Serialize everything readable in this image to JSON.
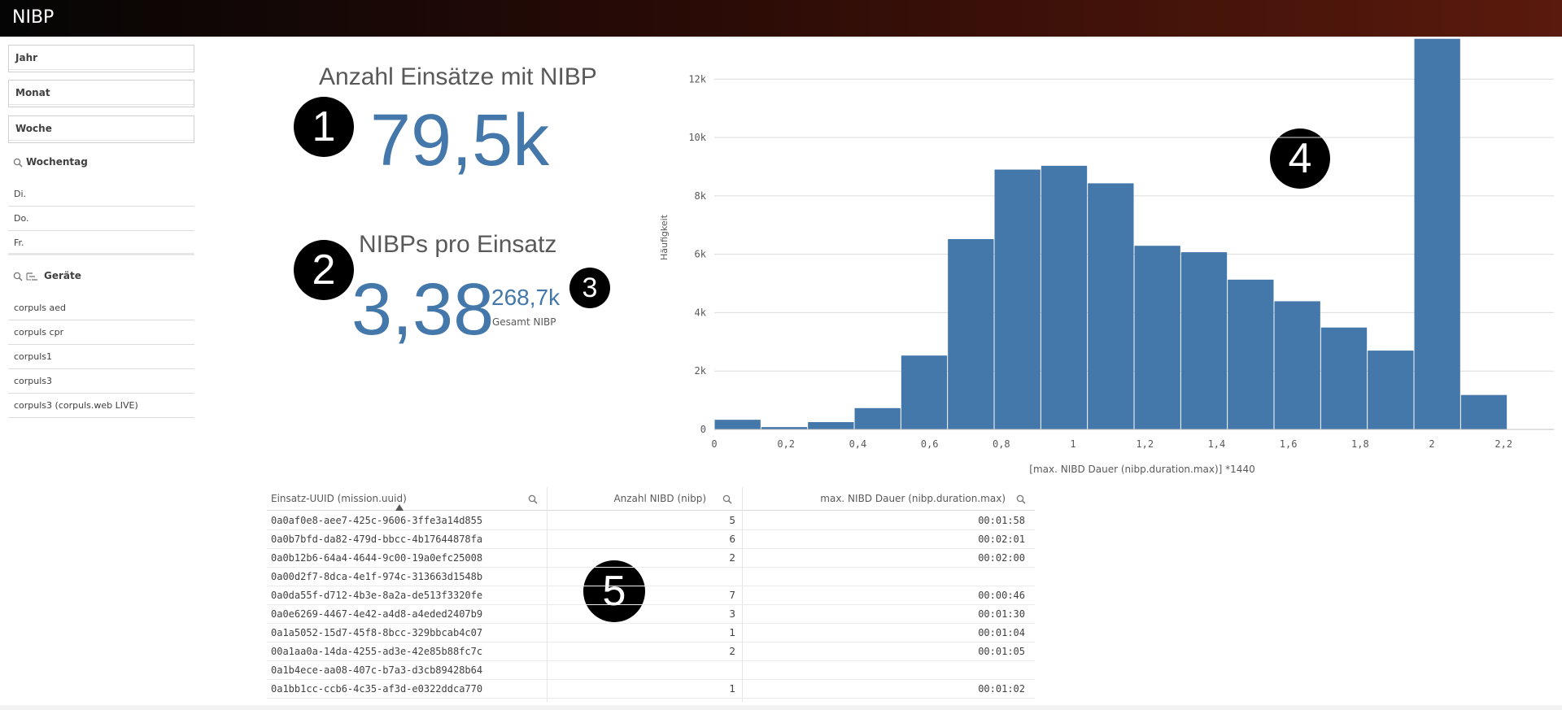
{
  "app": {
    "title": "NIBP"
  },
  "filters": {
    "jahr": "Jahr",
    "monat": "Monat",
    "woche": "Woche",
    "wochentag": {
      "title": "Wochentag",
      "items": [
        "Di.",
        "Do.",
        "Fr."
      ]
    },
    "geraete": {
      "title": "Geräte",
      "items": [
        "corpuls aed",
        "corpuls cpr",
        "corpuls1",
        "corpuls3",
        "corpuls3 (corpuls.web LIVE)"
      ]
    }
  },
  "kpi1": {
    "title": "Anzahl Einsätze mit NIBP",
    "value": "79,5k"
  },
  "kpi2": {
    "title": "NIBPs pro Einsatz",
    "value": "3,38",
    "secondary_value": "268,7k",
    "secondary_label": "Gesamt NIBP"
  },
  "markers": [
    "1",
    "2",
    "3",
    "4",
    "5"
  ],
  "chart_data": {
    "type": "bar",
    "xlabel": "[max. NIBD Dauer (nibp.duration.max)] *1440",
    "ylabel": "Häufigkeit",
    "bin_width": 0.13,
    "bin_start": 0,
    "values": [
      330,
      80,
      250,
      730,
      2530,
      6520,
      8900,
      9030,
      8430,
      6290,
      6070,
      5130,
      4390,
      3490,
      2700,
      13380,
      1180
    ],
    "xlim": [
      0,
      2.34
    ],
    "ylim": [
      0,
      13400
    ],
    "x_ticks": [
      {
        "v": 0,
        "label": "0"
      },
      {
        "v": 0.2,
        "label": "0,2"
      },
      {
        "v": 0.4,
        "label": "0,4"
      },
      {
        "v": 0.6,
        "label": "0,6"
      },
      {
        "v": 0.8,
        "label": "0,8"
      },
      {
        "v": 1,
        "label": "1"
      },
      {
        "v": 1.2,
        "label": "1,2"
      },
      {
        "v": 1.4,
        "label": "1,4"
      },
      {
        "v": 1.6,
        "label": "1,6"
      },
      {
        "v": 1.8,
        "label": "1,8"
      },
      {
        "v": 2,
        "label": "2"
      },
      {
        "v": 2.2,
        "label": "2,2"
      }
    ],
    "y_ticks": [
      {
        "v": 0,
        "label": "0"
      },
      {
        "v": 2000,
        "label": "2k"
      },
      {
        "v": 4000,
        "label": "4k"
      },
      {
        "v": 6000,
        "label": "6k"
      },
      {
        "v": 8000,
        "label": "8k"
      },
      {
        "v": 10000,
        "label": "10k"
      },
      {
        "v": 12000,
        "label": "12k"
      }
    ],
    "bar_color": "#4477aa",
    "grid": true
  },
  "table": {
    "headers": [
      "Einsatz-UUID (mission.uuid)",
      "Anzahl NIBD (nibp)",
      "max. NIBD Dauer (nibp.duration.max)"
    ],
    "rows": [
      [
        "0a0af0e8-aee7-425c-9606-3ffe3a14d855",
        "5",
        "00:01:58"
      ],
      [
        "0a0b7bfd-da82-479d-bbcc-4b17644878fa",
        "6",
        "00:02:01"
      ],
      [
        "0a0b12b6-64a4-4644-9c00-19a0efc25008",
        "2",
        "00:02:00"
      ],
      [
        "0a00d2f7-8dca-4e1f-974c-313663d1548b",
        "",
        ""
      ],
      [
        "0a0da55f-d712-4b3e-8a2a-de513f3320fe",
        "7",
        "00:00:46"
      ],
      [
        "0a0e6269-4467-4e42-a4d8-a4eded2407b9",
        "3",
        "00:01:30"
      ],
      [
        "0a1a5052-15d7-45f8-8bcc-329bbcab4c07",
        "1",
        "00:01:04"
      ],
      [
        "00a1aa0a-14da-4255-ad3e-42e85b88fc7c",
        "2",
        "00:01:05"
      ],
      [
        "0a1b4ece-aa08-407c-b7a3-d3cb89428b64",
        "",
        ""
      ],
      [
        "0a1bb1cc-ccb6-4c35-af3d-e0322ddca770",
        "1",
        "00:01:02"
      ]
    ]
  }
}
